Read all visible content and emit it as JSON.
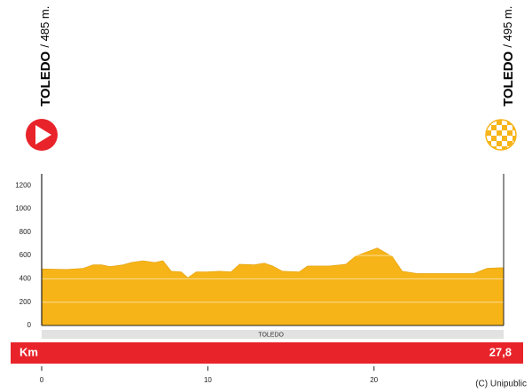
{
  "chart_data": {
    "type": "area",
    "start": {
      "town": "TOLEDO",
      "altitude": "/ 485 m."
    },
    "finish": {
      "town": "TOLEDO",
      "altitude": "/ 495 m."
    },
    "x": [
      0,
      1.5,
      2.5,
      3.1,
      3.6,
      4.1,
      4.9,
      5.4,
      6.1,
      6.8,
      7.3,
      7.8,
      8.4,
      8.8,
      9.3,
      9.9,
      10.7,
      11.4,
      11.9,
      12.8,
      13.4,
      13.9,
      14.5,
      15.5,
      16.0,
      16.8,
      17.3,
      18.3,
      18.9,
      20.2,
      21.1,
      21.7,
      22.6,
      26.0,
      26.8,
      27.5,
      27.8
    ],
    "values": [
      485,
      480,
      490,
      520,
      520,
      505,
      520,
      540,
      555,
      540,
      555,
      465,
      460,
      410,
      460,
      460,
      465,
      460,
      525,
      520,
      535,
      510,
      465,
      460,
      510,
      510,
      510,
      525,
      595,
      665,
      590,
      465,
      445,
      445,
      490,
      495,
      495
    ],
    "color": "#f7b418",
    "xlim": [
      0,
      27.8
    ],
    "xticks": [
      0,
      10,
      20
    ],
    "ylim": [
      0,
      1300
    ],
    "yticks": [
      0,
      200,
      400,
      600,
      800,
      1000,
      1200
    ],
    "grid": true,
    "towns": [
      {
        "km": 13.8,
        "label": "TOLEDO"
      }
    ],
    "distance_unit": "Km",
    "distance_label": "27,8",
    "credit": "(C) Unipublic"
  }
}
